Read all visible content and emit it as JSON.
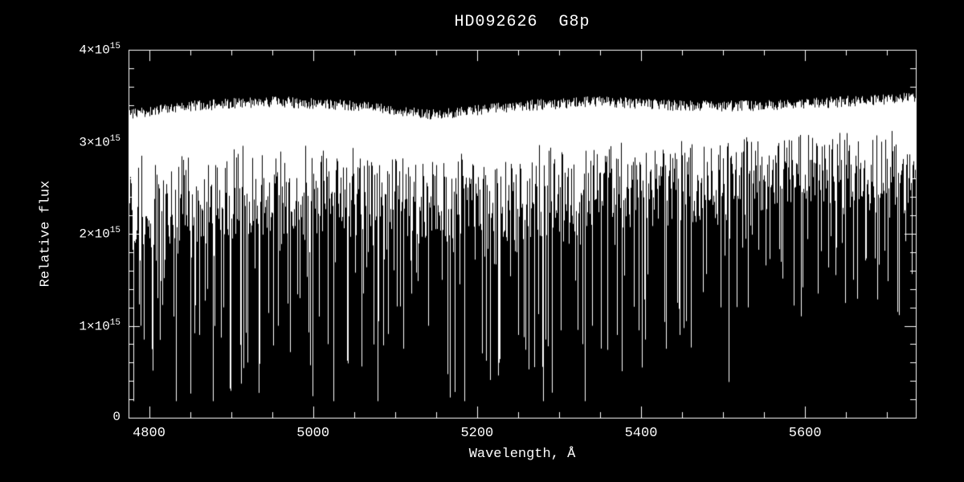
{
  "chart_data": {
    "type": "line",
    "title": "HD092626  G8p",
    "xlabel": "Wavelength, Å",
    "ylabel": "Relative flux",
    "xlim": [
      4775,
      5735
    ],
    "ylim": [
      0,
      4000000000000000.0
    ],
    "grid": false,
    "legend": "none",
    "x_ticks": [
      {
        "value": 4800,
        "label": "4800"
      },
      {
        "value": 5000,
        "label": "5000"
      },
      {
        "value": 5200,
        "label": "5200"
      },
      {
        "value": 5400,
        "label": "5400"
      },
      {
        "value": 5600,
        "label": "5600"
      }
    ],
    "y_ticks": [
      {
        "value": 0,
        "label": "0"
      },
      {
        "value": 1000000000000000.0,
        "label": "1×10^15"
      },
      {
        "value": 2000000000000000.0,
        "label": "2×10^15"
      },
      {
        "value": 3000000000000000.0,
        "label": "3×10^15"
      },
      {
        "value": 4000000000000000.0,
        "label": "4×10^15"
      }
    ],
    "x_minor_step": 50,
    "y_minor_step": 200000000000000.0,
    "colors": {
      "background": "#000000",
      "foreground": "#ffffff"
    },
    "continuum_envelope": [
      [
        4775,
        3350000000000000.0
      ],
      [
        4850,
        3450000000000000.0
      ],
      [
        4950,
        3500000000000000.0
      ],
      [
        5050,
        3450000000000000.0
      ],
      [
        5150,
        3350000000000000.0
      ],
      [
        5250,
        3450000000000000.0
      ],
      [
        5350,
        3500000000000000.0
      ],
      [
        5450,
        3450000000000000.0
      ],
      [
        5550,
        3450000000000000.0
      ],
      [
        5650,
        3500000000000000.0
      ],
      [
        5735,
        3550000000000000.0
      ]
    ],
    "absorption_strength": [
      [
        4775,
        1.0
      ],
      [
        4900,
        1.0
      ],
      [
        5000,
        0.95
      ],
      [
        5100,
        0.9
      ],
      [
        5200,
        1.0
      ],
      [
        5300,
        0.95
      ],
      [
        5400,
        0.9
      ],
      [
        5500,
        0.8
      ],
      [
        5600,
        0.72
      ],
      [
        5735,
        0.78
      ]
    ],
    "deep_absorption_lines": [
      [
        4790,
        1000000000000000.0
      ],
      [
        4810,
        1300000000000000.0
      ],
      [
        4830,
        1100000000000000.0
      ],
      [
        4861,
        900000000000000.0
      ],
      [
        4871,
        1400000000000000.0
      ],
      [
        4891,
        1200000000000000.0
      ],
      [
        4920,
        600000000000000.0
      ],
      [
        4934,
        270000000000000.0
      ],
      [
        4957,
        1000000000000000.0
      ],
      [
        4984,
        1300000000000000.0
      ],
      [
        5007,
        1100000000000000.0
      ],
      [
        5018,
        800000000000000.0
      ],
      [
        5041,
        620000000000000.0
      ],
      [
        5080,
        1050000000000000.0
      ],
      [
        5110,
        750000000000000.0
      ],
      [
        5140,
        1000000000000000.0
      ],
      [
        5167,
        220000000000000.0
      ],
      [
        5173,
        280000000000000.0
      ],
      [
        5184,
        550000000000000.0
      ],
      [
        5206,
        700000000000000.0
      ],
      [
        5227,
        650000000000000.0
      ],
      [
        5250,
        900000000000000.0
      ],
      [
        5270,
        550000000000000.0
      ],
      [
        5283,
        850000000000000.0
      ],
      [
        5302,
        950000000000000.0
      ],
      [
        5328,
        800000000000000.0
      ],
      [
        5340,
        1000000000000000.0
      ],
      [
        5371,
        900000000000000.0
      ],
      [
        5397,
        950000000000000.0
      ],
      [
        5405,
        850000000000000.0
      ],
      [
        5430,
        750000000000000.0
      ],
      [
        5447,
        900000000000000.0
      ],
      [
        5455,
        1050000000000000.0
      ],
      [
        5497,
        1200000000000000.0
      ],
      [
        5507,
        1150000000000000.0
      ],
      [
        5530,
        1200000000000000.0
      ],
      [
        5586,
        1300000000000000.0
      ],
      [
        5615,
        1350000000000000.0
      ],
      [
        5659,
        1500000000000000.0
      ],
      [
        5688,
        1400000000000000.0
      ],
      [
        5712,
        1150000000000000.0
      ]
    ],
    "line_forest": {
      "spike_probability": 0.32,
      "band_depth_min": 500000000000000.0,
      "band_depth_max": 1500000000000000.0,
      "max_extra_depth": 2400000000000000.0,
      "top_jitter": 0.035,
      "floor_flux": 180000000000000.0
    },
    "noise_seed": 20260211
  }
}
